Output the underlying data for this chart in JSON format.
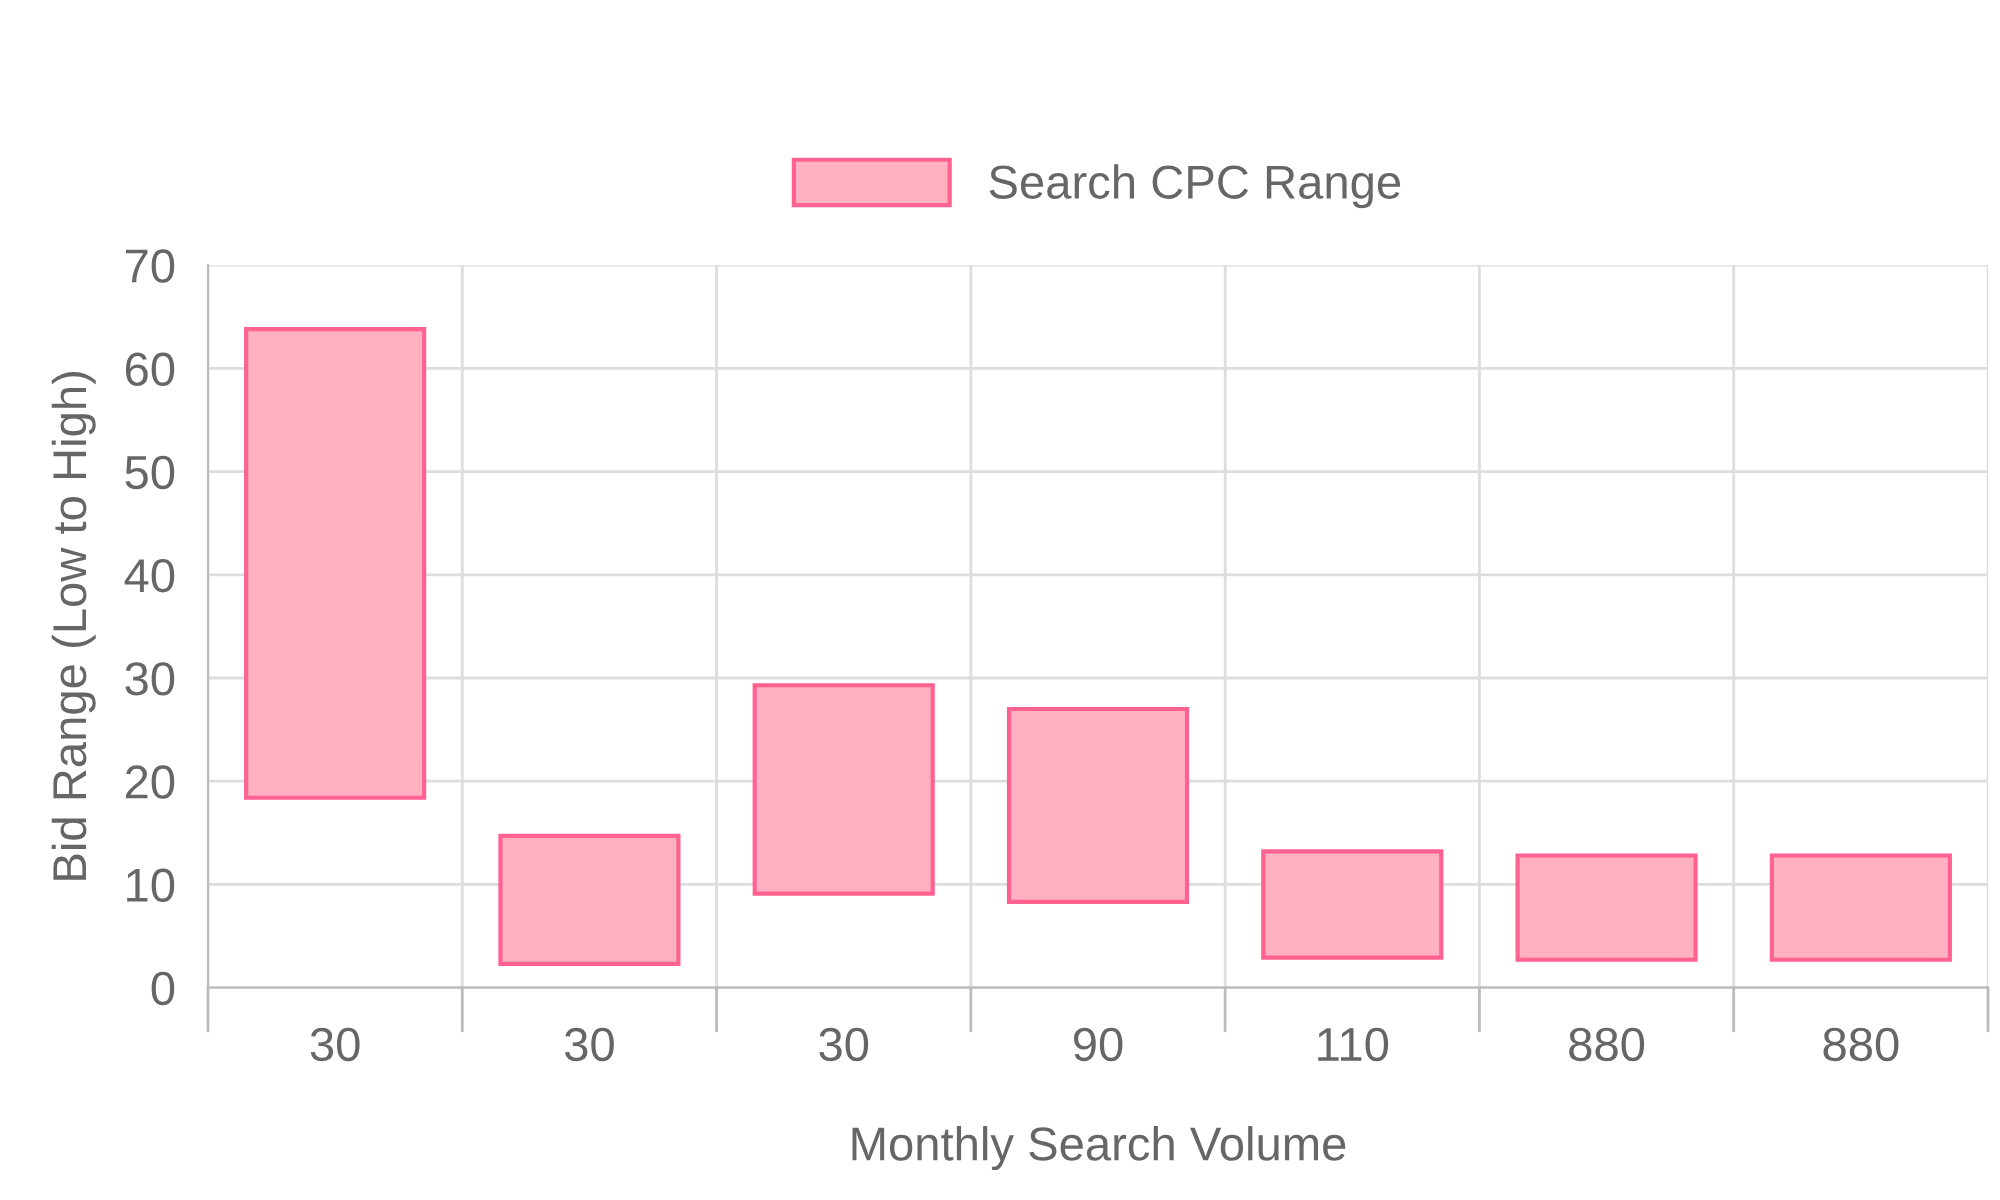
{
  "chart_data": {
    "type": "bar",
    "xlabel": "Monthly Search Volume",
    "ylabel": "Bid Range (Low to High)",
    "categories": [
      "30",
      "30",
      "30",
      "90",
      "110",
      "880",
      "880"
    ],
    "series": [
      {
        "name": "Search CPC Range",
        "color": "#ffb1c1",
        "base": [
          18.4,
          2.3,
          9.1,
          8.3,
          2.9,
          2.7,
          2.7
        ],
        "values": [
          45.4,
          12.4,
          20.2,
          18.7,
          10.3,
          10.1,
          10.1
        ]
      }
    ],
    "ylim": [
      0,
      70
    ],
    "yticks": [
      0,
      10,
      20,
      30,
      40,
      50,
      60,
      70
    ],
    "grid": true,
    "legend": "top"
  }
}
